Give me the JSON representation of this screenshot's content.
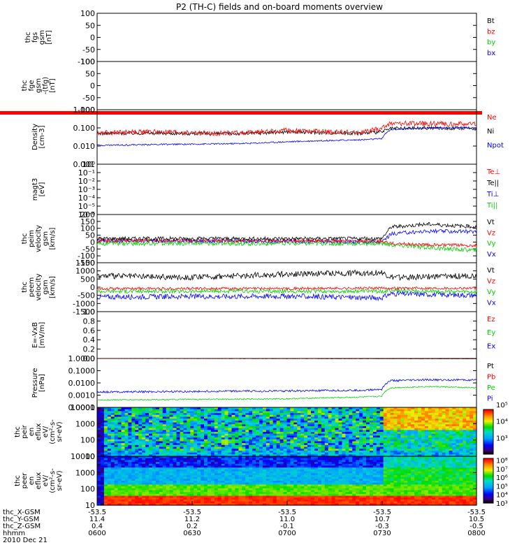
{
  "title": "P2 (TH-C) fields and on-board moments overview",
  "date_label": "2010 Dec 21",
  "x_axis": {
    "row_labels": [
      "thc_X-GSM",
      "thc_Y-GSM",
      "thc_Z-GSM",
      "hhmm"
    ],
    "rows": [
      [
        "-53.5",
        "-53.5",
        "-53.5",
        "-53.5",
        "-53.5"
      ],
      [
        "11.4",
        "11.2",
        "11.0",
        "10.7",
        "10.5"
      ],
      [
        "0.4",
        "0.2",
        "-0.1",
        "-0.3",
        "-0.5"
      ],
      [
        "0600",
        "0630",
        "0700",
        "0730",
        "0800"
      ]
    ]
  },
  "colors": {
    "black": "#000000",
    "red": "#ff0000",
    "green": "#00d000",
    "blue": "#0000ff"
  },
  "chart_data": [
    {
      "id": "fgs",
      "type": "line",
      "ylabel_lines": [
        "thc",
        "fgs",
        "gsm",
        "[nT]"
      ],
      "ylim": [
        -100,
        100
      ],
      "ticks": [
        "100",
        "50",
        "0",
        "-50",
        "-100"
      ],
      "legend": [
        {
          "label": "Bt",
          "color": "#000000"
        },
        {
          "label": "bz",
          "color": "#ff0000"
        },
        {
          "label": "by",
          "color": "#00d000"
        },
        {
          "label": "bx",
          "color": "#0000ff"
        }
      ],
      "series": []
    },
    {
      "id": "fge",
      "type": "line",
      "ylabel_lines": [
        "thc",
        "fge",
        "gsm",
        "-(tfg)",
        "[nT]"
      ],
      "ylim": [
        -100,
        100
      ],
      "ticks": [
        "100",
        "50",
        "0",
        "-50",
        "-100"
      ],
      "legend": [],
      "series": [],
      "bottom_band_color": "#ff0000"
    },
    {
      "id": "density",
      "type": "line",
      "ylabel_lines": [
        "Density",
        "[cm-3]"
      ],
      "log": true,
      "ylim": [
        0.001,
        1.0
      ],
      "ticks": [
        "1.000",
        "0.100",
        "0.010",
        "0.001"
      ],
      "legend": [
        {
          "label": "Ne",
          "color": "#ff0000"
        },
        {
          "label": "Ni",
          "color": "#000000"
        },
        {
          "label": "Npot",
          "color": "#0000ff"
        }
      ],
      "series": [
        {
          "name": "Ni",
          "color": "#000000",
          "noise": 0.1,
          "x": [
            0,
            28,
            60,
            80,
            100,
            120,
            140,
            150,
            155,
            175,
            200
          ],
          "y": [
            0.05,
            0.052,
            0.048,
            0.05,
            0.06,
            0.055,
            0.05,
            0.06,
            0.09,
            0.1,
            0.09
          ]
        },
        {
          "name": "Ne",
          "color": "#ff0000",
          "noise": 0.14,
          "x": [
            0,
            28,
            60,
            80,
            100,
            120,
            140,
            150,
            155,
            175,
            200
          ],
          "y": [
            0.055,
            0.06,
            0.05,
            0.055,
            0.07,
            0.06,
            0.055,
            0.09,
            0.18,
            0.17,
            0.16
          ]
        },
        {
          "name": "Npot",
          "color": "#0000ff",
          "noise": 0.04,
          "x": [
            0,
            28,
            60,
            80,
            100,
            120,
            140,
            150,
            155,
            175,
            200
          ],
          "y": [
            0.011,
            0.012,
            0.013,
            0.014,
            0.017,
            0.02,
            0.022,
            0.025,
            0.08,
            0.1,
            0.1
          ]
        }
      ]
    },
    {
      "id": "magt3",
      "type": "line",
      "ylabel_lines": [
        "magt3",
        "[eV]"
      ],
      "log": true,
      "ylim": [
        1e-06,
        1.0
      ],
      "ticks": [
        "10⁰",
        "10⁻¹",
        "10⁻²",
        "10⁻³",
        "10⁻⁴",
        "10⁻⁵",
        "10⁻⁶"
      ],
      "legend": [
        {
          "label": "Te⊥",
          "color": "#ff0000"
        },
        {
          "label": "Te||",
          "color": "#000000"
        },
        {
          "label": "Ti⊥",
          "color": "#0000ff"
        },
        {
          "label": "Ti||",
          "color": "#00d000"
        }
      ],
      "series": []
    },
    {
      "id": "peim",
      "type": "line",
      "ylabel_lines": [
        "thc",
        "peim",
        "velocity",
        "gsm",
        "[km/s]"
      ],
      "ylim": [
        -150,
        200
      ],
      "ticks": [
        "200",
        "150",
        "100",
        "50",
        "0",
        "-50",
        "-100",
        "-150"
      ],
      "legend": [
        {
          "label": "Vt",
          "color": "#000000"
        },
        {
          "label": "Vz",
          "color": "#ff0000"
        },
        {
          "label": "Vy",
          "color": "#00d000"
        },
        {
          "label": "Vx",
          "color": "#0000ff"
        }
      ],
      "series": [
        {
          "name": "Vx",
          "color": "#0000ff",
          "noise": 14,
          "x": [
            0,
            100,
            150,
            155,
            175,
            200
          ],
          "y": [
            10,
            5,
            0,
            60,
            80,
            75
          ]
        },
        {
          "name": "Vy",
          "color": "#00d000",
          "noise": 16,
          "x": [
            0,
            100,
            150,
            155,
            175,
            200
          ],
          "y": [
            -10,
            -10,
            -10,
            -20,
            -40,
            -60
          ]
        },
        {
          "name": "Vz",
          "color": "#ff0000",
          "noise": 12,
          "x": [
            0,
            100,
            150,
            155,
            175,
            200
          ],
          "y": [
            10,
            10,
            5,
            -10,
            -20,
            -25
          ]
        },
        {
          "name": "Vt",
          "color": "#000000",
          "noise": 14,
          "x": [
            0,
            100,
            150,
            155,
            175,
            200
          ],
          "y": [
            25,
            25,
            25,
            110,
            130,
            110
          ]
        }
      ]
    },
    {
      "id": "peem",
      "type": "line",
      "ylabel_lines": [
        "thc",
        "peem",
        "velocity",
        "gsm",
        "[km/s]"
      ],
      "ylim": [
        -1500,
        1500
      ],
      "ticks": [
        "1500",
        "1000",
        "500",
        "0",
        "-500",
        "-1000",
        "-1500"
      ],
      "legend": [
        {
          "label": "Vt",
          "color": "#000000"
        },
        {
          "label": "Vz",
          "color": "#ff0000"
        },
        {
          "label": "Vy",
          "color": "#00d000"
        },
        {
          "label": "Vx",
          "color": "#0000ff"
        }
      ],
      "series": [
        {
          "name": "Vx",
          "color": "#0000ff",
          "noise": 160,
          "x": [
            0,
            100,
            150,
            155,
            200
          ],
          "y": [
            -600,
            -550,
            -650,
            -400,
            -500
          ]
        },
        {
          "name": "Vy",
          "color": "#00d000",
          "noise": 120,
          "x": [
            0,
            100,
            150,
            155,
            200
          ],
          "y": [
            -250,
            -250,
            -250,
            -200,
            -300
          ]
        },
        {
          "name": "Vz",
          "color": "#ff0000",
          "noise": 80,
          "x": [
            0,
            100,
            150,
            155,
            200
          ],
          "y": [
            -80,
            -80,
            -60,
            -60,
            -60
          ]
        },
        {
          "name": "Vt",
          "color": "#000000",
          "noise": 180,
          "x": [
            0,
            50,
            100,
            150,
            155,
            200
          ],
          "y": [
            700,
            600,
            800,
            900,
            600,
            700
          ]
        }
      ]
    },
    {
      "id": "efield",
      "type": "line",
      "ylabel_lines": [
        "E=-VxB",
        "[mV/m]"
      ],
      "ylim": [
        0,
        1.0
      ],
      "ticks": [
        "1.0",
        "0.8",
        "0.6",
        "0.4",
        "0.2",
        "0.0"
      ],
      "legend": [
        {
          "label": "Ez",
          "color": "#ff0000"
        },
        {
          "label": "Ey",
          "color": "#00d000"
        },
        {
          "label": "Ex",
          "color": "#0000ff"
        }
      ],
      "series": []
    },
    {
      "id": "pressure",
      "type": "line",
      "ylabel_lines": [
        "Pressure",
        "[nPa]"
      ],
      "log": true,
      "ylim": [
        0.0001,
        1.0
      ],
      "ticks": [
        "1.0000",
        "0.1000",
        "0.0100",
        "0.0010",
        "0.0001"
      ],
      "legend": [
        {
          "label": "Pt",
          "color": "#000000"
        },
        {
          "label": "Pb",
          "color": "#ff0000"
        },
        {
          "label": "Pe",
          "color": "#00d000"
        },
        {
          "label": "Pi",
          "color": "#0000ff"
        }
      ],
      "series": [
        {
          "name": "Pb",
          "color": "#ff0000",
          "noise": 0.01,
          "x": [
            0,
            100,
            150,
            200
          ],
          "y": [
            1.0,
            0.98,
            0.97,
            0.95
          ]
        },
        {
          "name": "Pt",
          "color": "#000000",
          "noise": 0.01,
          "x": [
            0,
            100,
            150,
            200
          ],
          "y": [
            1.0,
            0.99,
            0.98,
            0.97
          ]
        },
        {
          "name": "Pe",
          "color": "#00d000",
          "noise": 0.05,
          "x": [
            0,
            100,
            140,
            150,
            155,
            175,
            200
          ],
          "y": [
            0.0004,
            0.0005,
            0.0007,
            0.0008,
            0.004,
            0.005,
            0.004
          ]
        },
        {
          "name": "Pi",
          "color": "#0000ff",
          "noise": 0.08,
          "x": [
            0,
            100,
            140,
            150,
            155,
            175,
            200
          ],
          "y": [
            0.0018,
            0.0022,
            0.0025,
            0.003,
            0.015,
            0.018,
            0.017
          ]
        }
      ]
    },
    {
      "id": "peir",
      "type": "heatmap",
      "ylabel_lines": [
        "thc",
        "peir",
        "en",
        "eflux",
        "eV/",
        "(cm²-s-",
        "sr-eV)"
      ],
      "log": true,
      "ylim": [
        10,
        10000
      ],
      "ticks": [
        "10000",
        "1000",
        "100",
        "10"
      ],
      "colorbar_ticks": [
        "10⁵",
        "10⁴",
        "10³"
      ],
      "colorbar_range": [
        3,
        5.7
      ]
    },
    {
      "id": "peer",
      "type": "heatmap",
      "ylabel_lines": [
        "thc",
        "peer",
        "en",
        "eflux",
        "eV/",
        "(cm²-s-",
        "sr-eV)"
      ],
      "log": true,
      "ylim": [
        10,
        10000
      ],
      "ticks": [
        "10000",
        "1000",
        "100",
        "10"
      ],
      "colorbar_ticks": [
        "10⁸",
        "10⁷",
        "10⁶",
        "10⁵",
        "10⁴",
        "10³"
      ],
      "colorbar_range": [
        3,
        8.2
      ]
    }
  ]
}
